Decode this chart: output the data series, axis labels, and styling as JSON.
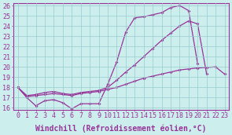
{
  "xlabel": "Windchill (Refroidissement éolien,°C)",
  "background_color": "#cceeed",
  "grid_color": "#99cccc",
  "line_color": "#993399",
  "x_ticks": [
    0,
    1,
    2,
    3,
    4,
    5,
    6,
    7,
    8,
    9,
    10,
    11,
    12,
    13,
    14,
    15,
    16,
    17,
    18,
    19,
    20,
    21,
    22,
    23
  ],
  "ylim": [
    16,
    26
  ],
  "xlim": [
    -0.5,
    23.5
  ],
  "y_ticks": [
    16,
    17,
    18,
    19,
    20,
    21,
    22,
    23,
    24,
    25,
    26
  ],
  "series1_x": [
    0,
    1,
    2,
    3,
    4,
    5,
    6,
    7,
    8,
    9,
    10,
    11,
    12,
    13,
    14,
    15,
    16,
    17,
    18,
    19,
    20
  ],
  "series1_y": [
    18.0,
    17.0,
    16.2,
    16.7,
    16.8,
    16.5,
    15.9,
    16.4,
    16.4,
    16.4,
    18.3,
    20.5,
    23.4,
    24.8,
    24.9,
    25.1,
    25.3,
    25.8,
    26.0,
    25.5,
    20.3
  ],
  "series2_x": [
    0,
    1,
    2,
    3,
    4,
    5,
    6,
    7,
    8,
    9,
    10,
    11,
    12,
    13,
    14,
    15,
    16,
    17,
    18,
    19,
    20,
    21
  ],
  "series2_y": [
    18.0,
    17.2,
    17.3,
    17.5,
    17.6,
    17.4,
    17.3,
    17.5,
    17.6,
    17.7,
    18.0,
    18.7,
    19.5,
    20.2,
    21.0,
    21.8,
    22.6,
    23.3,
    24.0,
    24.5,
    24.2,
    19.3
  ],
  "series3_x": [
    0,
    1,
    2,
    3,
    4,
    5,
    6,
    7,
    8,
    9,
    10,
    11,
    12,
    13,
    14,
    15,
    16,
    17,
    18,
    19,
    20,
    21,
    22,
    23
  ],
  "series3_y": [
    18.0,
    17.1,
    17.2,
    17.3,
    17.4,
    17.3,
    17.2,
    17.4,
    17.5,
    17.6,
    17.8,
    18.0,
    18.3,
    18.6,
    18.9,
    19.1,
    19.3,
    19.5,
    19.7,
    19.8,
    19.9,
    19.95,
    20.0,
    19.3
  ],
  "xlabel_fontsize": 7.0,
  "tick_fontsize": 6.0,
  "marker": "D",
  "markersize": 2.0,
  "linewidth": 0.9
}
